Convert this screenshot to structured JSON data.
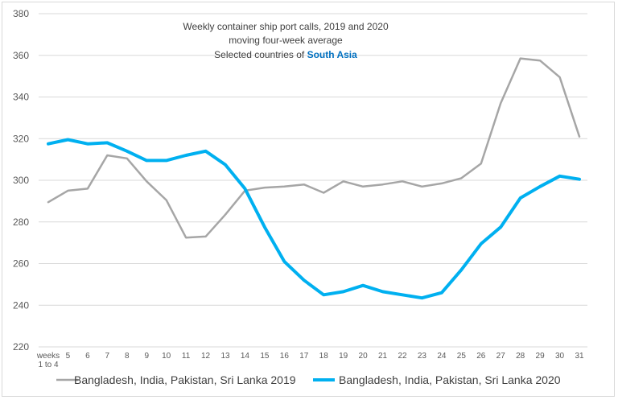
{
  "chart_data": {
    "type": "line",
    "title_lines": [
      "Weekly container ship port calls, 2019 and 2020",
      "moving four-week average"
    ],
    "subtitle_prefix": "Selected countries of ",
    "subtitle_highlight": "South Asia",
    "categories": [
      "weeks 1 to 4",
      "5",
      "6",
      "7",
      "8",
      "9",
      "10",
      "11",
      "12",
      "13",
      "14",
      "15",
      "16",
      "17",
      "18",
      "19",
      "20",
      "21",
      "22",
      "23",
      "24",
      "25",
      "26",
      "27",
      "28",
      "29",
      "30",
      "31"
    ],
    "first_category_lines": [
      "weeks",
      "1 to 4"
    ],
    "ylim": [
      220,
      380
    ],
    "yticks": [
      220,
      240,
      260,
      280,
      300,
      320,
      340,
      360,
      380
    ],
    "grid": true,
    "legend_position": "bottom",
    "series": [
      {
        "name": "Bangladesh, India, Pakistan, Sri Lanka 2019",
        "color": "#a6a6a6",
        "values": [
          289.5,
          295,
          296,
          312,
          310.5,
          299.5,
          290.5,
          272.5,
          273,
          283.5,
          295,
          296.5,
          297,
          298,
          294,
          299.5,
          297,
          298,
          299.5,
          297,
          298.5,
          301,
          308,
          337,
          358.5,
          357.5,
          349.5,
          321
        ]
      },
      {
        "name": "Bangladesh, India, Pakistan, Sri Lanka 2020",
        "color": "#00b0f0",
        "values": [
          317.5,
          319.5,
          317.5,
          318,
          314,
          309.5,
          309.5,
          312,
          314,
          307.5,
          296,
          277.5,
          261,
          252,
          245,
          246.5,
          249.5,
          246.5,
          245,
          243.5,
          246,
          257,
          269.5,
          277.5,
          291.5,
          297,
          302,
          300.5
        ]
      }
    ],
    "colors": {
      "highlight": "#0070c0",
      "grid": "#d9d9d9"
    }
  }
}
